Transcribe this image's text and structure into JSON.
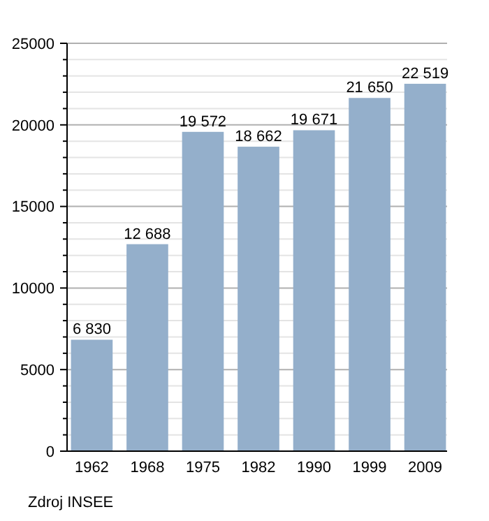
{
  "chart_data": {
    "type": "bar",
    "categories": [
      "1962",
      "1968",
      "1975",
      "1982",
      "1990",
      "1999",
      "2009"
    ],
    "values": [
      6830,
      12688,
      19572,
      18662,
      19671,
      21650,
      22519
    ],
    "value_labels": [
      "6 830",
      "12 688",
      "19 572",
      "18 662",
      "19 671",
      "21 650",
      "22 519"
    ],
    "color": "#94afcb",
    "ylim": [
      0,
      25000
    ],
    "yticks": [
      0,
      {
        "value": 1000,
        "label": null
      },
      {
        "value": 2000,
        "label": null
      },
      {
        "value": 3000,
        "label": null
      },
      {
        "value": 4000,
        "label": null
      },
      5000,
      {
        "value": 6000,
        "label": null
      },
      {
        "value": 7000,
        "label": null
      },
      {
        "value": 8000,
        "label": null
      },
      {
        "value": 9000,
        "label": null
      },
      10000,
      {
        "value": 11000,
        "label": null
      },
      {
        "value": 12000,
        "label": null
      },
      {
        "value": 13000,
        "label": null
      },
      {
        "value": 14000,
        "label": null
      },
      15000,
      {
        "value": 16000,
        "label": null
      },
      {
        "value": 17000,
        "label": null
      },
      {
        "value": 18000,
        "label": null
      },
      {
        "value": 19000,
        "label": null
      },
      20000,
      {
        "value": 21000,
        "label": null
      },
      {
        "value": 22000,
        "label": null
      },
      {
        "value": 23000,
        "label": null
      },
      {
        "value": 24000,
        "label": null
      },
      25000
    ],
    "grid": true,
    "annotations": [
      "Zdroj INSEE"
    ]
  }
}
